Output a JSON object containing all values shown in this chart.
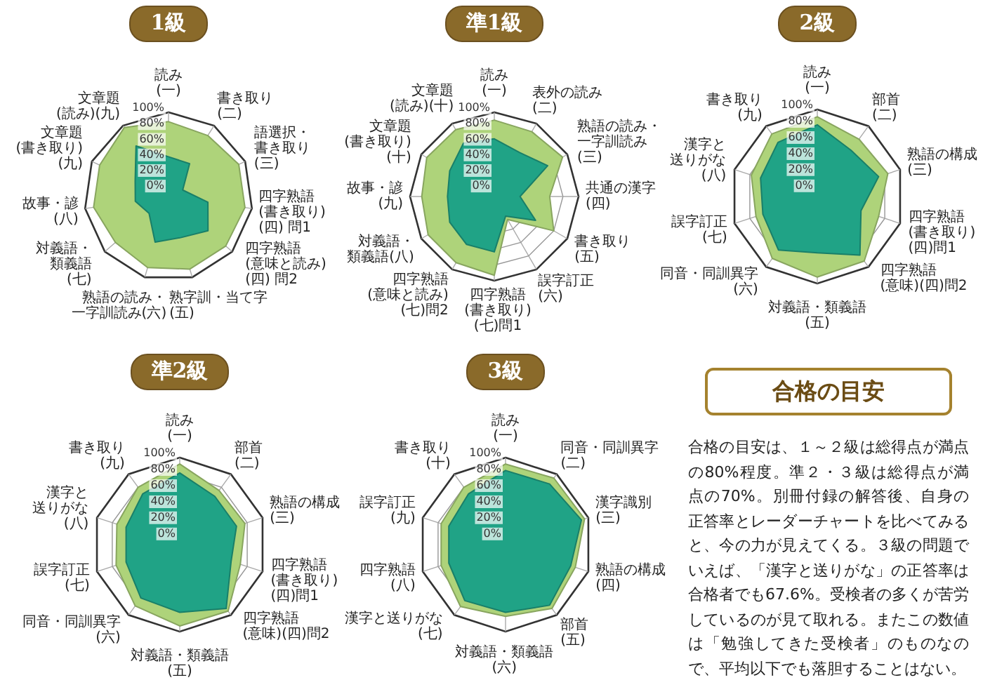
{
  "chart_data": [
    {
      "type": "radar",
      "title": "1級",
      "categories": [
        "読み\n(一)",
        "書き取り\n(二)",
        "語選択・書き取り\n(三)",
        "四字熟語\n(書き取り)\n(四) 問1",
        "四字熟語\n(意味と読み)\n(四) 問2",
        "熟字訓・当て字\n(五)",
        "熟語の読み・一字訓読み(六)",
        "対義語・類義語\n(七)",
        "故事・諺\n(八)",
        "文章題\n(書き取り)\n(九)",
        "文章題\n(読み)(九)"
      ],
      "series": [
        {
          "color": "#aed37a",
          "values": [
            88,
            85,
            91,
            91,
            89,
            89,
            87,
            82,
            89,
            89,
            97
          ]
        },
        {
          "color": "#20a386",
          "values": [
            43,
            42,
            12,
            43,
            59,
            47,
            53,
            25,
            35,
            39,
            69
          ]
        }
      ],
      "ylim": [
        -8,
        100
      ],
      "yticks": [
        {
          "value": 0,
          "label": "0%"
        },
        {
          "value": 20,
          "label": "20%"
        },
        {
          "value": 40,
          "label": "40%"
        },
        {
          "value": 60,
          "label": "60%"
        },
        {
          "value": 80,
          "label": "80%"
        },
        {
          "value": 100,
          "label": "100%"
        }
      ],
      "grid": true,
      "marker": "none"
    },
    {
      "type": "radar",
      "title": "準1級",
      "categories": [
        "読み\n(一)",
        "表外の読み\n(二)",
        "熟語の読み・一字訓読み\n(三)",
        "共通の漢字\n(四)",
        "書き取り\n(五)",
        "誤字訂正\n(六)",
        "四字熟語\n(書き取り)(七)問1",
        "四字熟語\n(意味と読み)\n(七)問2",
        "対義語・類義語(八)",
        "故事・諺\n(九)",
        "文章題\n(書き取り)\n(十)",
        "文章題\n(読み)(十)"
      ],
      "series": [
        {
          "color": "#aed37a",
          "values": [
            90,
            88,
            93,
            63,
            80,
            26,
            93,
            90,
            90,
            85,
            92,
            91
          ]
        },
        {
          "color": "#20a386",
          "values": [
            66,
            57,
            71,
            25,
            53,
            21,
            63,
            63,
            58,
            52,
            58,
            71
          ]
        }
      ],
      "ylim": [
        -8,
        100
      ],
      "yticks": [
        {
          "value": 0,
          "label": "0%"
        },
        {
          "value": 20,
          "label": "20%"
        },
        {
          "value": 40,
          "label": "40%"
        },
        {
          "value": 60,
          "label": "60%"
        },
        {
          "value": 80,
          "label": "80%"
        },
        {
          "value": 100,
          "label": "100%"
        }
      ],
      "grid": true,
      "marker": "none"
    },
    {
      "type": "radar",
      "title": "2級",
      "categories": [
        "読み\n(一)",
        "部首\n(二)",
        "熟語の構成\n(三)",
        "四字熟語\n(書き取り)\n(四)問1",
        "四字熟語\n(意味)(四)問2",
        "対義語・類義語\n(五)",
        "同音・同訓異字(六)",
        "誤字訂正\n(七)",
        "漢字と送りがな\n(八)",
        "書き取り\n(九)"
      ],
      "series": [
        {
          "color": "#aed37a",
          "values": [
            91,
            80,
            84,
            72,
            91,
            92,
            87,
            72,
            78,
            88
          ]
        },
        {
          "color": "#20a386",
          "values": [
            81,
            63,
            72,
            49,
            82,
            62,
            74,
            63,
            66,
            75
          ]
        }
      ],
      "ylim": [
        -8,
        100
      ],
      "yticks": [
        {
          "value": 0,
          "label": "0%"
        },
        {
          "value": 20,
          "label": "20%"
        },
        {
          "value": 40,
          "label": "40%"
        },
        {
          "value": 60,
          "label": "60%"
        },
        {
          "value": 80,
          "label": "80%"
        },
        {
          "value": 100,
          "label": "100%"
        }
      ],
      "grid": true,
      "marker": "none"
    },
    {
      "type": "radar",
      "title": "準2級",
      "categories": [
        "読み\n(一)",
        "部首\n(二)",
        "熟語の構成\n(三)",
        "四字熟語\n(書き取り)\n(四)問1",
        "四字熟語\n(意味)(四)問2",
        "対義語・類義語\n(五)",
        "同音・同訓異字\n(六)",
        "誤字訂正\n(七)",
        "漢字と送りがな\n(八)",
        "書き取り\n(九)"
      ],
      "series": [
        {
          "color": "#aed37a",
          "values": [
            92,
            75,
            77,
            71,
            94,
            93,
            86,
            75,
            74,
            80
          ]
        },
        {
          "color": "#20a386",
          "values": [
            81,
            66,
            66,
            59,
            90,
            76,
            74,
            62,
            62,
            70
          ]
        }
      ],
      "ylim": [
        -8,
        100
      ],
      "yticks": [
        {
          "value": 0,
          "label": "0%"
        },
        {
          "value": 20,
          "label": "20%"
        },
        {
          "value": 40,
          "label": "40%"
        },
        {
          "value": 60,
          "label": "60%"
        },
        {
          "value": 80,
          "label": "80%"
        },
        {
          "value": 100,
          "label": "100%"
        }
      ],
      "grid": true,
      "marker": "none"
    },
    {
      "type": "radar",
      "title": "3級",
      "categories": [
        "読み\n(一)",
        "同音・同訓異字\n(二)",
        "漢字識別\n(三)",
        "熟語の構成\n(四)",
        "部首\n(五)",
        "対義語・類義語\n(六)",
        "漢字と送りがな\n(七)",
        "四字熟語\n(八)",
        "誤字訂正\n(九)",
        "書き取り\n(十)"
      ],
      "series": [
        {
          "color": "#aed37a",
          "values": [
            92,
            94,
            95,
            83,
            90,
            81,
            87,
            76,
            76,
            80
          ]
        },
        {
          "color": "#20a386",
          "values": [
            84,
            85,
            91,
            77,
            85,
            76,
            78,
            66,
            66,
            70
          ]
        }
      ],
      "ylim": [
        -8,
        100
      ],
      "yticks": [
        {
          "value": 0,
          "label": "0%"
        },
        {
          "value": 20,
          "label": "20%"
        },
        {
          "value": 40,
          "label": "40%"
        },
        {
          "value": 60,
          "label": "60%"
        },
        {
          "value": 80,
          "label": "80%"
        },
        {
          "value": 100,
          "label": "100%"
        }
      ],
      "grid": true,
      "marker": "none"
    },
    {
      "type": "other",
      "title": "合格の目安",
      "annotations": [
        "合格の目安は、１～２級は総得点が満点の80%程度。準２・３級は総得点が満点の70%。別冊付録の解答後、自身の正答率とレーダーチャートを比べてみると、今の力が見えてくる。３級の問題でいえば、「漢字と送りがな」の正答率は合格者でも67.6%。受検者の多くが苦労しているのが見て取れる。またこの数値は「勉強してきた受検者」のものなので、平均以下でも落胆することはない。"
      ]
    }
  ]
}
